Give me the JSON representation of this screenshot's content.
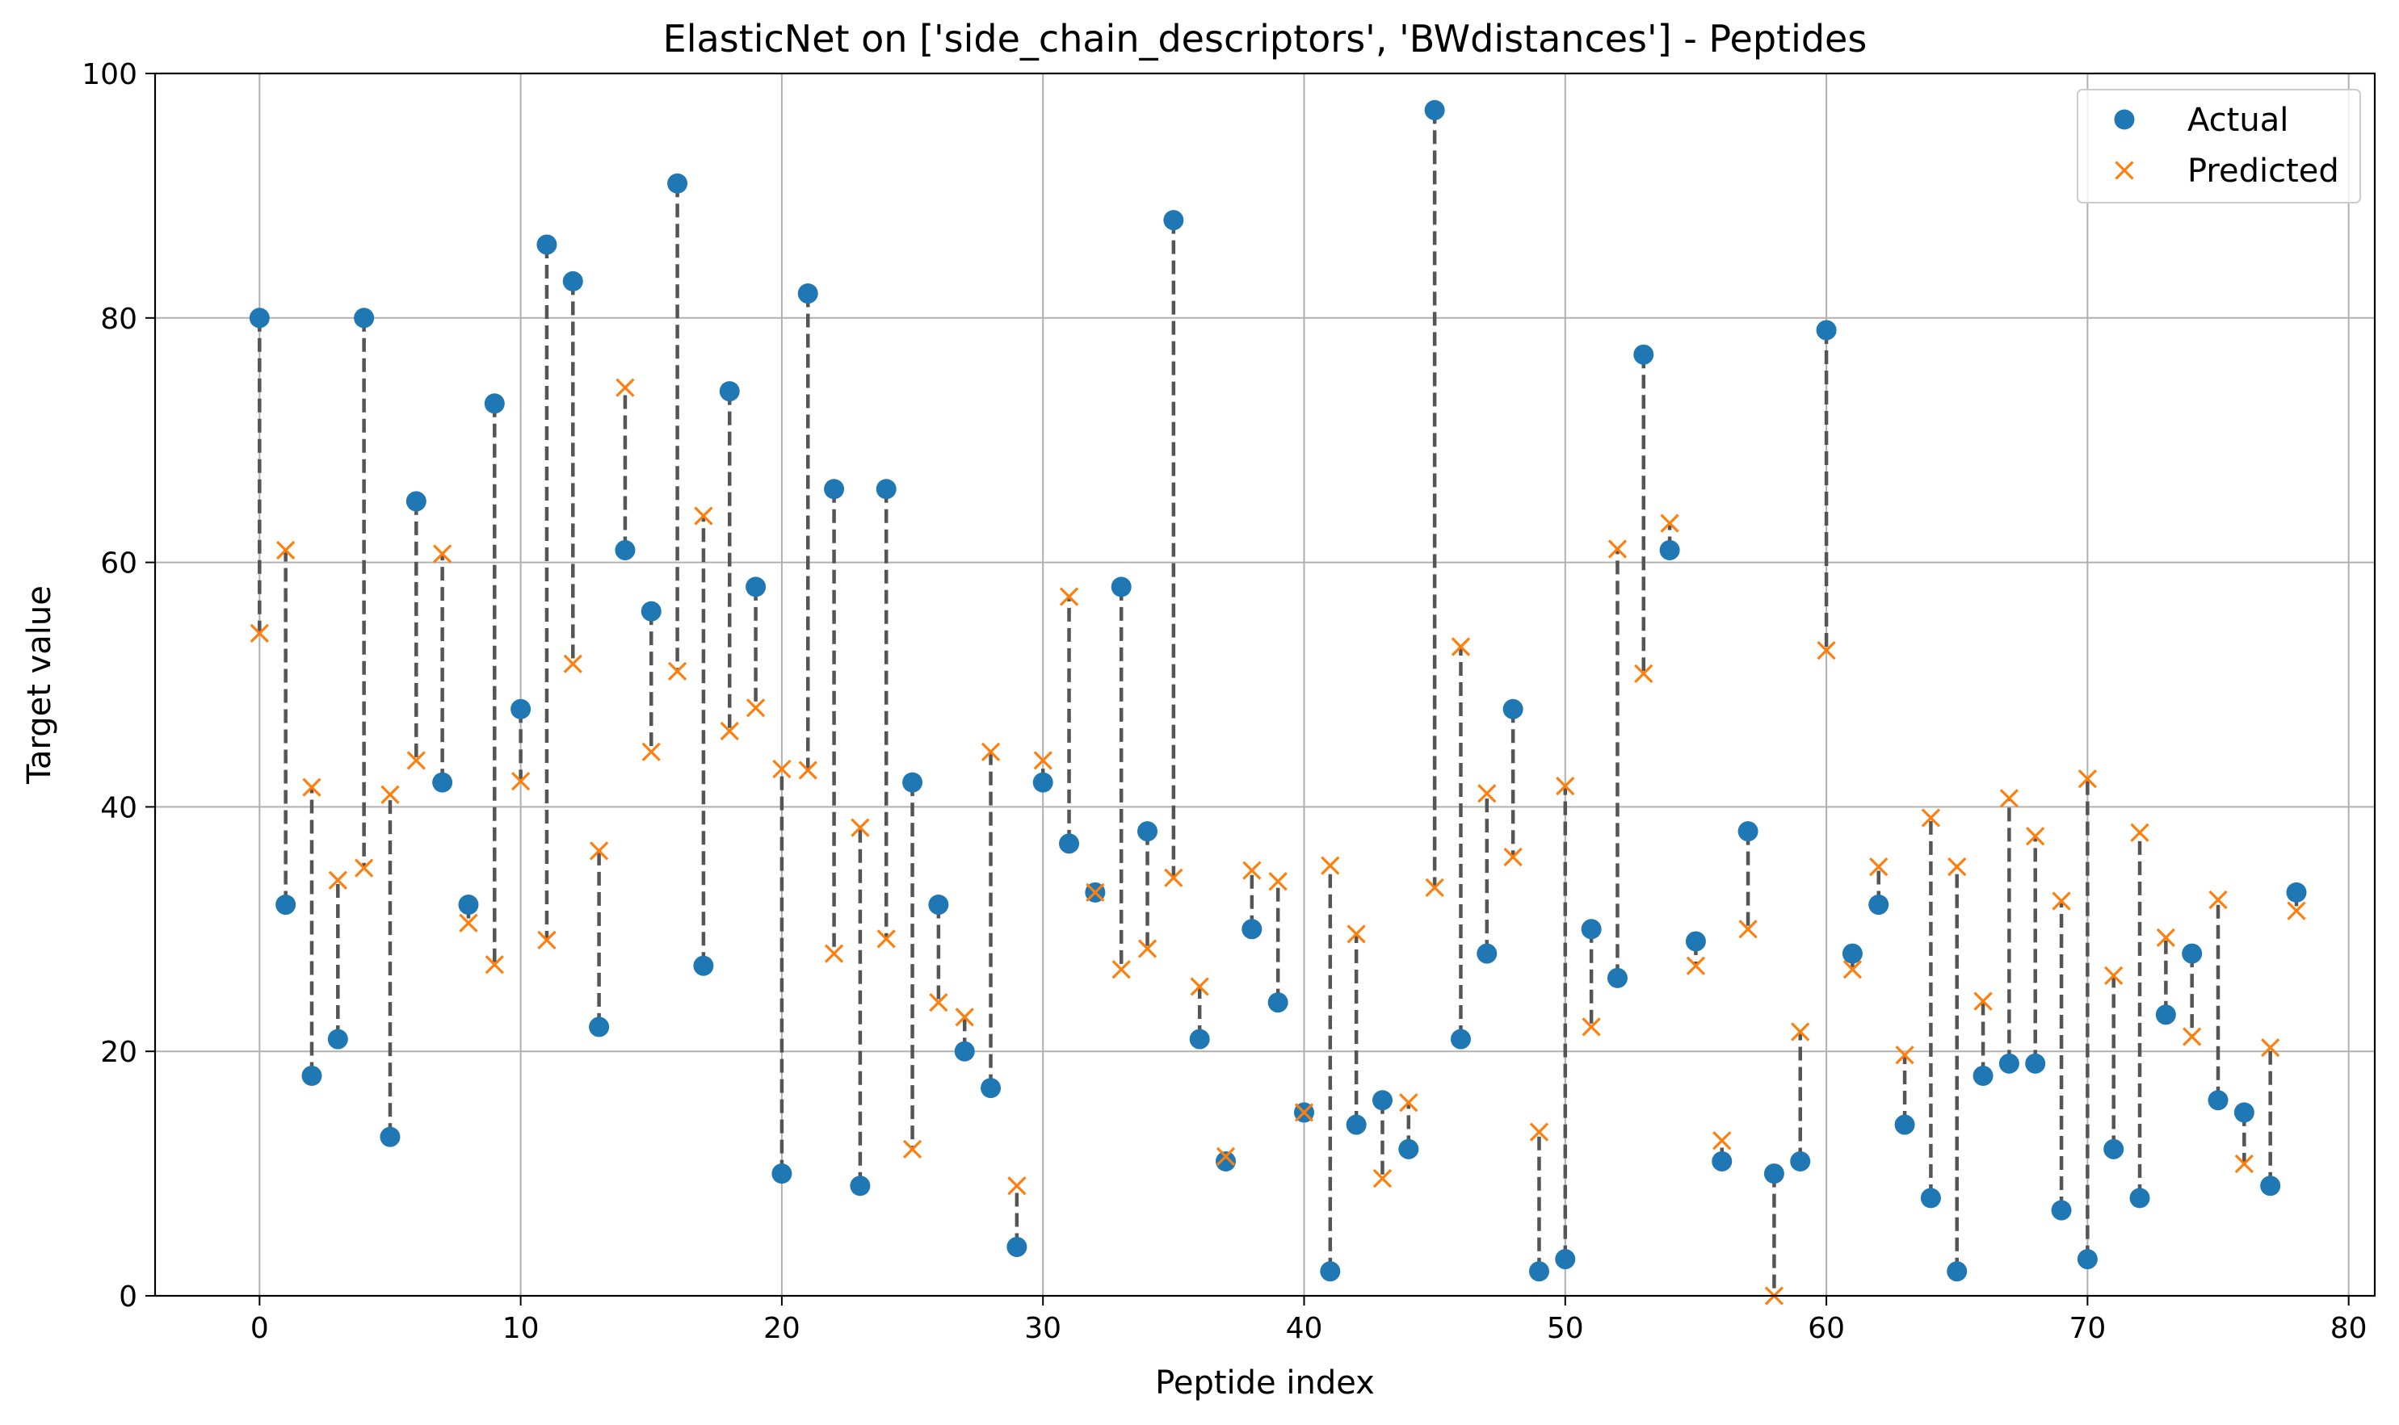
{
  "chart_data": {
    "type": "scatter",
    "title": "ElasticNet on ['side_chain_descriptors', 'BWdistances'] - Peptides",
    "xlabel": "Peptide index",
    "ylabel": "Target value",
    "xlim": [
      -4,
      81
    ],
    "ylim": [
      0,
      100
    ],
    "xticks": [
      0,
      10,
      20,
      30,
      40,
      50,
      60,
      70,
      80
    ],
    "yticks": [
      0,
      20,
      40,
      60,
      80,
      100
    ],
    "grid": true,
    "legend_position": "top-right",
    "colors": {
      "actual": "#1f77b4",
      "predicted": "#ff7f0e",
      "connector": "#555555"
    },
    "series": [
      {
        "name": "Actual",
        "marker": "circle",
        "x": [
          0,
          1,
          2,
          3,
          4,
          5,
          6,
          7,
          8,
          9,
          10,
          11,
          12,
          13,
          14,
          15,
          16,
          17,
          18,
          19,
          20,
          21,
          22,
          23,
          24,
          25,
          26,
          27,
          28,
          29,
          30,
          31,
          32,
          33,
          34,
          35,
          36,
          37,
          38,
          39,
          40,
          41,
          42,
          43,
          44,
          45,
          46,
          47,
          48,
          49,
          50,
          51,
          52,
          53,
          54,
          55,
          56,
          57,
          58,
          59,
          60,
          61,
          62,
          63,
          64,
          65,
          66,
          67,
          68,
          69,
          70,
          71,
          72,
          73,
          74,
          75,
          76,
          77,
          78
        ],
        "y": [
          80,
          32,
          18,
          21,
          80,
          13,
          65,
          42,
          32,
          73,
          48,
          86,
          83,
          22,
          61,
          56,
          91,
          27,
          74,
          58,
          10,
          82,
          66,
          9,
          66,
          42,
          32,
          20,
          17,
          4,
          42,
          37,
          33,
          58,
          38,
          88,
          21,
          11,
          30,
          24,
          15,
          2,
          14,
          16,
          12,
          97,
          21,
          28,
          48,
          2,
          3,
          30,
          26,
          77,
          61,
          29,
          11,
          38,
          10,
          11,
          79,
          28,
          32,
          14,
          8,
          2,
          18,
          19,
          19,
          7,
          3,
          12,
          8,
          23,
          28,
          16,
          15,
          9,
          33
        ]
      },
      {
        "name": "Predicted",
        "marker": "x",
        "x": [
          0,
          1,
          2,
          3,
          4,
          5,
          6,
          7,
          8,
          9,
          10,
          11,
          12,
          13,
          14,
          15,
          16,
          17,
          18,
          19,
          20,
          21,
          22,
          23,
          24,
          25,
          26,
          27,
          28,
          29,
          30,
          31,
          32,
          33,
          34,
          35,
          36,
          37,
          38,
          39,
          40,
          41,
          42,
          43,
          44,
          45,
          46,
          47,
          48,
          49,
          50,
          51,
          52,
          53,
          54,
          55,
          56,
          57,
          58,
          59,
          60,
          61,
          62,
          63,
          64,
          65,
          66,
          67,
          68,
          69,
          70,
          71,
          72,
          73,
          74,
          75,
          76,
          77,
          78
        ],
        "y": [
          54.2,
          61,
          41.6,
          34,
          35,
          41,
          43.8,
          60.7,
          30.5,
          27.1,
          42.1,
          29.1,
          51.7,
          36.4,
          74.3,
          44.5,
          51.1,
          63.8,
          46.2,
          48.1,
          43.1,
          43,
          28,
          38.3,
          29.2,
          12,
          24,
          22.8,
          44.5,
          9,
          43.8,
          57.2,
          33,
          26.7,
          28.4,
          34.2,
          25.3,
          11.4,
          34.8,
          33.9,
          15,
          35.2,
          29.6,
          9.6,
          15.8,
          33.4,
          53.1,
          41.1,
          35.9,
          13.4,
          41.7,
          22,
          61.1,
          50.9,
          63.2,
          27,
          12.7,
          30,
          0,
          21.6,
          52.8,
          26.7,
          35.1,
          19.7,
          39.1,
          35.1,
          24.1,
          40.7,
          37.6,
          32.3,
          42.3,
          26.2,
          37.9,
          29.3,
          21.2,
          32.4,
          10.8,
          20.3,
          31.5
        ]
      }
    ]
  }
}
